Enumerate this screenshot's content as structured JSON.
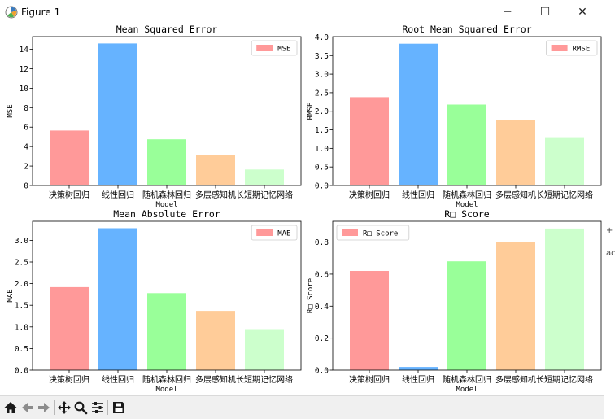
{
  "window": {
    "title": "Figure 1",
    "controls": {
      "minimize": "─",
      "maximize": "☐",
      "close": "✕"
    }
  },
  "right_strip": {
    "glyph_top": "+",
    "glyph_bottom": "ac"
  },
  "toolbar": {
    "buttons": [
      {
        "icon": "home-icon"
      },
      {
        "icon": "back-arrow-icon"
      },
      {
        "icon": "forward-arrow-icon"
      },
      {
        "icon": "pan-icon"
      },
      {
        "icon": "zoom-icon"
      },
      {
        "icon": "configure-subplots-icon"
      },
      {
        "icon": "save-icon"
      }
    ]
  },
  "colors": [
    "#ff9999",
    "#66b3ff",
    "#99ff99",
    "#ffcc99",
    "#ccffcc"
  ],
  "chart_data": [
    {
      "type": "bar",
      "title": "Mean Squared Error",
      "xlabel": "Model",
      "ylabel": "MSE",
      "legend": "MSE",
      "legend_position": "top-right",
      "categories": [
        "决策树回归",
        "线性回归",
        "随机森林回归",
        "多层感知机",
        "长短期记忆网络"
      ],
      "values": [
        5.65,
        14.6,
        4.75,
        3.1,
        1.65
      ],
      "ylim": [
        0,
        15.3
      ],
      "yticks": [
        0,
        2,
        4,
        6,
        8,
        10,
        12,
        14
      ],
      "yticklabels": [
        "0",
        "2",
        "4",
        "6",
        "8",
        "10",
        "12",
        "14"
      ]
    },
    {
      "type": "bar",
      "title": "Root Mean Squared Error",
      "xlabel": "Model",
      "ylabel": "RMSE",
      "legend": "RMSE",
      "legend_position": "top-right",
      "categories": [
        "决策树回归",
        "线性回归",
        "随机森林回归",
        "多层感知机",
        "长短期记忆网络"
      ],
      "values": [
        2.38,
        3.82,
        2.18,
        1.76,
        1.28
      ],
      "ylim": [
        0,
        4.01
      ],
      "yticks": [
        0,
        0.5,
        1,
        1.5,
        2,
        2.5,
        3,
        3.5,
        4
      ],
      "yticklabels": [
        "0.0",
        "0.5",
        "1.0",
        "1.5",
        "2.0",
        "2.5",
        "3.0",
        "3.5",
        "4.0"
      ]
    },
    {
      "type": "bar",
      "title": "Mean Absolute Error",
      "xlabel": "Model",
      "ylabel": "MAE",
      "legend": "MAE",
      "legend_position": "top-right",
      "categories": [
        "决策树回归",
        "线性回归",
        "随机森林回归",
        "多层感知机",
        "长短期记忆网络"
      ],
      "values": [
        1.92,
        3.28,
        1.78,
        1.37,
        0.95
      ],
      "ylim": [
        0,
        3.44
      ],
      "yticks": [
        0,
        0.5,
        1,
        1.5,
        2,
        2.5,
        3
      ],
      "yticklabels": [
        "0.0",
        "0.5",
        "1.0",
        "1.5",
        "2.0",
        "2.5",
        "3.0"
      ]
    },
    {
      "type": "bar",
      "title": "R□ Score",
      "xlabel": "Model",
      "ylabel": "R□ Score",
      "legend": "R□ Score",
      "legend_position": "top-left",
      "categories": [
        "决策树回归",
        "线性回归",
        "随机森林回归",
        "多层感知机",
        "长短期记忆网络"
      ],
      "values": [
        0.62,
        0.02,
        0.68,
        0.8,
        0.885
      ],
      "ylim": [
        0,
        0.93
      ],
      "yticks": [
        0,
        0.2,
        0.4,
        0.6,
        0.8
      ],
      "yticklabels": [
        "0.0",
        "0.2",
        "0.4",
        "0.6",
        "0.8"
      ]
    }
  ]
}
